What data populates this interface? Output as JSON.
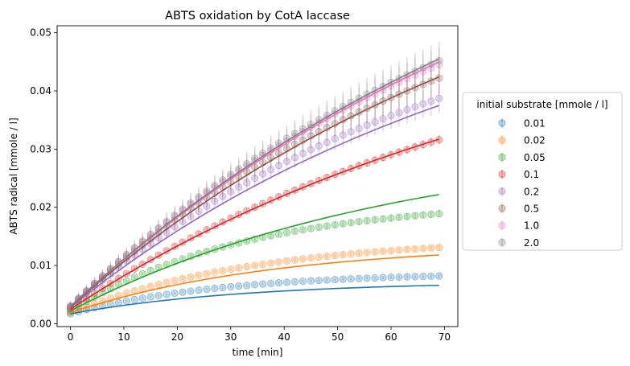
{
  "chart_data": {
    "type": "scatter",
    "title": "ABTS oxidation by CotA laccase",
    "xlabel": "time [min]",
    "ylabel": "ABTS radical [mmole / l]",
    "xlim": [
      -2.5,
      72.5
    ],
    "ylim": [
      -0.0005,
      0.0512
    ],
    "x_ticks": [
      0,
      10,
      20,
      30,
      40,
      50,
      60,
      70
    ],
    "y_ticks": [
      0.0,
      0.01,
      0.02,
      0.03,
      0.04,
      0.05
    ],
    "x_tick_labels": [
      "0",
      "10",
      "20",
      "30",
      "40",
      "50",
      "60",
      "70"
    ],
    "y_tick_labels": [
      "0.00",
      "0.01",
      "0.02",
      "0.03",
      "0.04",
      "0.05"
    ],
    "grid": false,
    "legend": {
      "title": "initial substrate [mmole / l]",
      "placement": "outside-right"
    },
    "x_time": {
      "start": 0,
      "end": 69,
      "step": 1.5
    },
    "series": [
      {
        "name": "0.01",
        "color": "#1f77b4",
        "measured": {
          "y0": 0.0017,
          "y_end": 0.0082,
          "k": 0.035,
          "err": 0.0003
        },
        "model": {
          "y0": 0.0017,
          "y_end": 0.0066,
          "k": 0.03
        }
      },
      {
        "name": "0.02",
        "color": "#ff7f0e",
        "measured": {
          "y0": 0.0019,
          "y_end": 0.0131,
          "k": 0.028,
          "err": 0.0004
        },
        "model": {
          "y0": 0.0019,
          "y_end": 0.0118,
          "k": 0.026
        }
      },
      {
        "name": "0.05",
        "color": "#2ca02c",
        "measured": {
          "y0": 0.0022,
          "y_end": 0.0189,
          "k": 0.03,
          "err": 0.0006
        },
        "model": {
          "y0": 0.0022,
          "y_end": 0.0222,
          "k": 0.016
        }
      },
      {
        "name": "0.1",
        "color": "#d62728",
        "measured": {
          "y0": 0.0025,
          "y_end": 0.0316,
          "k": 0.012,
          "err": 0.0008
        },
        "model": {
          "y0": 0.0025,
          "y_end": 0.0317,
          "k": 0.011
        }
      },
      {
        "name": "0.2",
        "color": "#9467bd",
        "measured": {
          "y0": 0.0028,
          "y_end": 0.0387,
          "k": 0.014,
          "err": 0.0025
        },
        "model": {
          "y0": 0.0028,
          "y_end": 0.0375,
          "k": 0.012
        }
      },
      {
        "name": "0.5",
        "color": "#8c564b",
        "measured": {
          "y0": 0.0029,
          "y_end": 0.0422,
          "k": 0.013,
          "err": 0.0028
        },
        "model": {
          "y0": 0.0029,
          "y_end": 0.0424,
          "k": 0.011
        }
      },
      {
        "name": "1.0",
        "color": "#e377c2",
        "measured": {
          "y0": 0.003,
          "y_end": 0.0445,
          "k": 0.012,
          "err": 0.003
        },
        "model": {
          "y0": 0.003,
          "y_end": 0.045,
          "k": 0.01
        }
      },
      {
        "name": "2.0",
        "color": "#7f7f7f",
        "measured": {
          "y0": 0.003,
          "y_end": 0.0452,
          "k": 0.012,
          "err": 0.0032
        },
        "model": {
          "y0": 0.003,
          "y_end": 0.0455,
          "k": 0.01
        }
      }
    ]
  }
}
